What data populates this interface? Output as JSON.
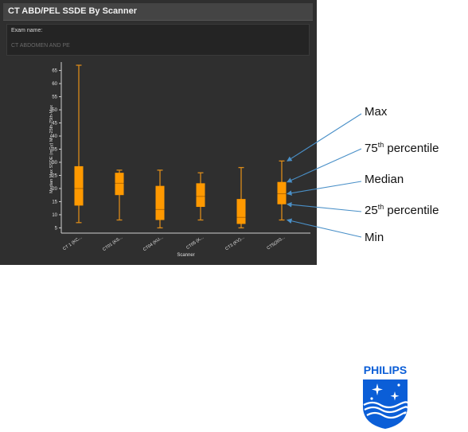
{
  "panel": {
    "title": "CT ABD/PEL SSDE By Scanner",
    "exam_label": "Exam name:",
    "exam_value": "CT ABDOMEN AND PE"
  },
  "colors": {
    "box_fill": "#ff9900",
    "whisker": "#d98a1a",
    "panel_bg": "#2f2f2f",
    "callout_arrow": "#4a90c8"
  },
  "chart_data": {
    "type": "box",
    "xlabel": "Scanner",
    "ylabel": "Median Max SSDE (mGy) Min-25th-75th-Max",
    "ylim": [
      3,
      67
    ],
    "yticks": [
      5,
      10,
      15,
      20,
      25,
      30,
      35,
      40,
      45,
      50,
      55,
      60,
      65
    ],
    "categories": [
      "CT 1 (KC...",
      "CT01 (KS...",
      "CT04 (KU...",
      "CT05 (K...",
      "CT3 (KV)...",
      "CT5(203..."
    ],
    "boxes": [
      {
        "min": 7,
        "q1": 13.5,
        "median": 20,
        "q3": 28.5,
        "max": 67
      },
      {
        "min": 8,
        "q1": 17.5,
        "median": 22,
        "q3": 26,
        "max": 27
      },
      {
        "min": 5,
        "q1": 8,
        "median": 12,
        "q3": 21,
        "max": 27
      },
      {
        "min": 8,
        "q1": 13,
        "median": 17,
        "q3": 22,
        "max": 26
      },
      {
        "min": 5,
        "q1": 6.5,
        "median": 9,
        "q3": 16,
        "max": 28
      },
      {
        "min": 8,
        "q1": 14,
        "median": 18,
        "q3": 22.5,
        "max": 30.5
      }
    ]
  },
  "callouts": {
    "max": "Max",
    "p75_num": "75",
    "p75_sup": "th",
    "p75_rest": " percentile",
    "median": "Median",
    "p25_num": "25",
    "p25_sup": "th",
    "p25_rest": " percentile",
    "min": "Min"
  },
  "logo": {
    "brand": "PHILIPS"
  }
}
